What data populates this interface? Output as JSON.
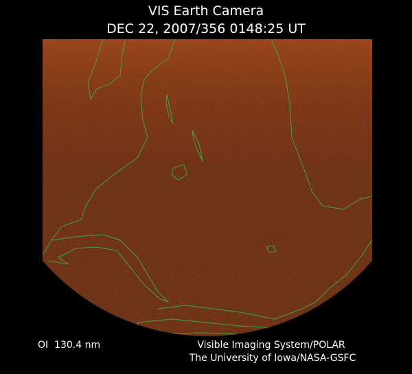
{
  "header": {
    "title": "VIS Earth Camera",
    "subtitle": "DEC 22, 2007/356 0148:25 UT"
  },
  "footer": {
    "filter": "OI  130.4 nm",
    "instrument": "Visible Imaging System/POLAR",
    "institution": "The University of Iowa/NASA-GSFC"
  }
}
